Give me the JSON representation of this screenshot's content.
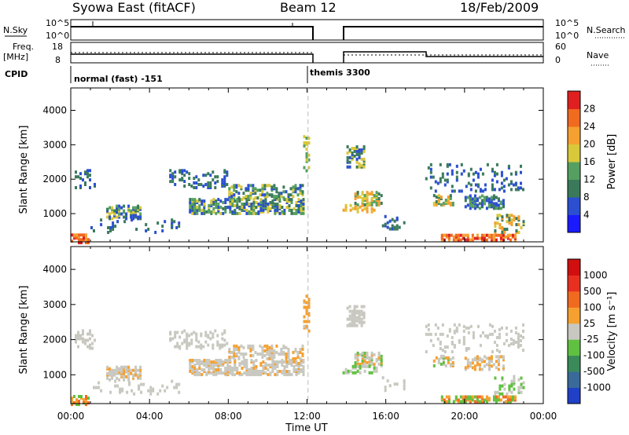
{
  "header": {
    "station": "Syowa East (fitACF)",
    "beam": "Beam 12",
    "date": "18/Feb/2009"
  },
  "panels": {
    "top_left_label": "N.Sky",
    "top_right_label": "N.Search",
    "top_ticks": [
      "10^5",
      "10^0"
    ],
    "top_right_ticks": [
      "10^5",
      "10^0"
    ],
    "freq_label_1": "Freq.",
    "freq_label_2": "[MHz]",
    "freq_ticks": [
      "18",
      "8"
    ],
    "nave_label": "Nave",
    "nave_ticks": [
      "60",
      "0"
    ],
    "cpid_label": "CPID",
    "cpid_mode_1": "normal (fast) -151",
    "cpid_mode_2": "themis 3300"
  },
  "chart_data": [
    {
      "type": "heatmap",
      "title": "",
      "ylabel": "Slant Range [km]",
      "xlabel": "Time UT",
      "x_ticks": [
        "00:00",
        "04:00",
        "08:00",
        "12:00",
        "16:00",
        "20:00",
        "00:00"
      ],
      "y_ticks": [
        "1000",
        "2000",
        "3000",
        "4000"
      ],
      "ylim": [
        180,
        4650
      ],
      "colorbar": {
        "label": "Power [dB]",
        "ticks": [
          "4",
          "8",
          "12",
          "16",
          "20",
          "24",
          "28"
        ],
        "colors": [
          "#1a1aff",
          "#2b4fd0",
          "#3a7a5a",
          "#55a060",
          "#d9c83a",
          "#f5a030",
          "#f06a20",
          "#e02020"
        ]
      }
    },
    {
      "type": "heatmap",
      "title": "",
      "ylabel": "Slant Range [km]",
      "xlabel": "Time UT",
      "x_ticks": [
        "00:00",
        "04:00",
        "08:00",
        "12:00",
        "16:00",
        "20:00",
        "00:00"
      ],
      "y_ticks": [
        "1000",
        "2000",
        "3000",
        "4000"
      ],
      "ylim": [
        180,
        4650
      ],
      "colorbar": {
        "label": "Velocity [m s⁻¹]",
        "ticks": [
          "1000",
          "500",
          "100",
          "25",
          "-25",
          "-100",
          "-500",
          "-1000"
        ],
        "colors": [
          "#2040c8",
          "#3a6a9a",
          "#3a8a5a",
          "#60c040",
          "#c8c8c0",
          "#f5a030",
          "#f06a20",
          "#e83020",
          "#d01010"
        ]
      }
    }
  ],
  "bottom": {
    "xlabel": "Time UT"
  }
}
